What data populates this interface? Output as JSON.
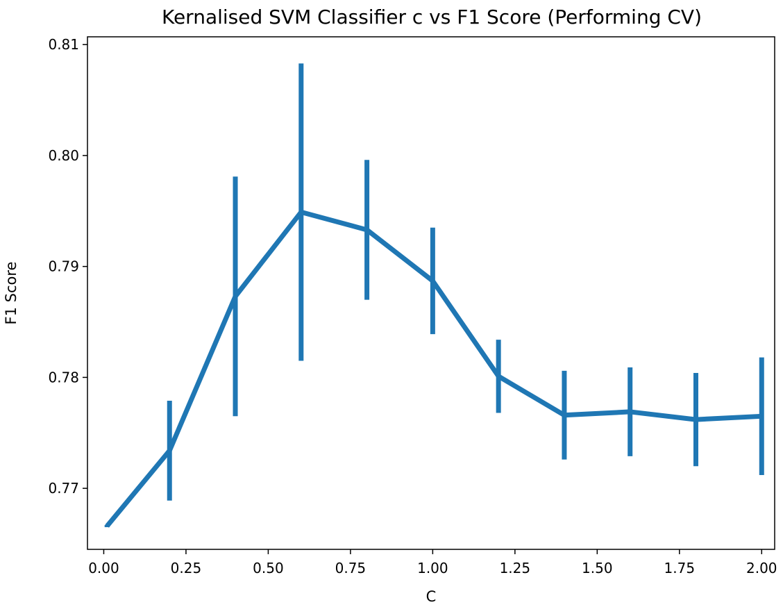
{
  "chart_data": {
    "type": "line",
    "title": "Kernalised SVM Classifier c vs F1 Score (Performing CV)",
    "xlabel": "C",
    "ylabel": "F1 Score",
    "xlim": [
      -0.0495,
      2.0395
    ],
    "ylim": [
      0.7645,
      0.8107
    ],
    "xticks": [
      "0.00",
      "0.25",
      "0.50",
      "0.75",
      "1.00",
      "1.25",
      "1.50",
      "1.75",
      "2.00"
    ],
    "yticks": [
      "0.77",
      "0.78",
      "0.79",
      "0.80",
      "0.81"
    ],
    "grid": false,
    "legend": "none",
    "color": "#1f77b4",
    "series": [
      {
        "x": [
          0.01,
          0.2,
          0.4,
          0.6,
          0.8,
          1.0,
          1.2,
          1.4,
          1.6,
          1.8,
          2.0
        ],
        "y": [
          0.7666,
          0.7734,
          0.7873,
          0.7949,
          0.7933,
          0.7887,
          0.7801,
          0.7766,
          0.7769,
          0.7762,
          0.7765
        ],
        "err": [
          0.0001,
          0.0045,
          0.0108,
          0.0134,
          0.0063,
          0.0048,
          0.0033,
          0.004,
          0.004,
          0.0042,
          0.0053
        ]
      }
    ]
  }
}
